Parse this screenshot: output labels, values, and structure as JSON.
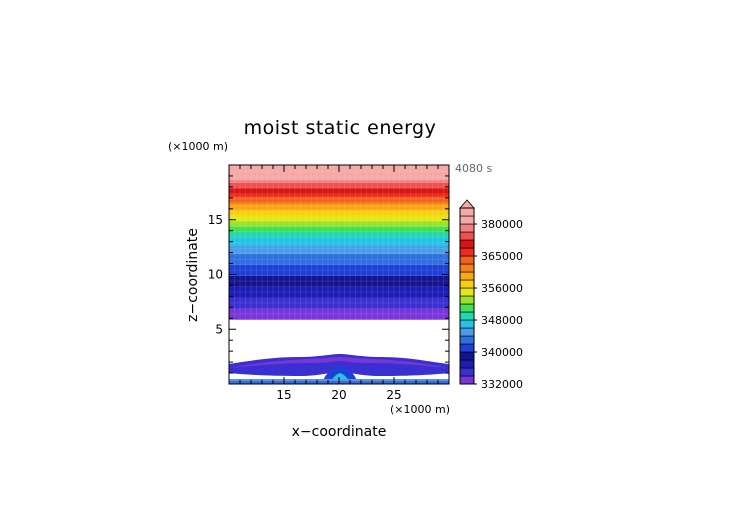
{
  "chart_data": {
    "type": "heatmap",
    "title": "moist static energy",
    "xlabel": "x−coordinate",
    "ylabel": "z−coordinate",
    "x_unit": "(×1000 m)",
    "y_unit": "(×1000 m)",
    "time_label": "4080 s",
    "xlim": [
      10,
      30
    ],
    "ylim": [
      0,
      20
    ],
    "x_ticks": [
      15,
      20,
      25
    ],
    "y_ticks": [
      5,
      10,
      15
    ],
    "colorbar": {
      "labels": [
        380000,
        365000,
        356000,
        348000,
        340000,
        332000
      ],
      "levels": [
        332000,
        334000,
        336000,
        338000,
        340000,
        342000,
        344000,
        346000,
        348000,
        350000,
        352000,
        354000,
        356000,
        358000,
        360000,
        362500,
        365000,
        367500,
        370000,
        375000,
        380000,
        385000,
        390000
      ],
      "extend": "max"
    },
    "profile": {
      "z": [
        0,
        0.6,
        2.4,
        5.9,
        6.0,
        7.0,
        8.0,
        9.0,
        10.0,
        11.0,
        12.0,
        13.0,
        14.0,
        15.0,
        16.0,
        17.0,
        18.0,
        19.0,
        20.0
      ],
      "mse": [
        333000,
        329000,
        331000,
        329000,
        332000,
        334000,
        336000,
        338000,
        340000,
        342000,
        344000,
        347000,
        350000,
        354000,
        358000,
        364000,
        371000,
        383000,
        390000
      ]
    }
  }
}
